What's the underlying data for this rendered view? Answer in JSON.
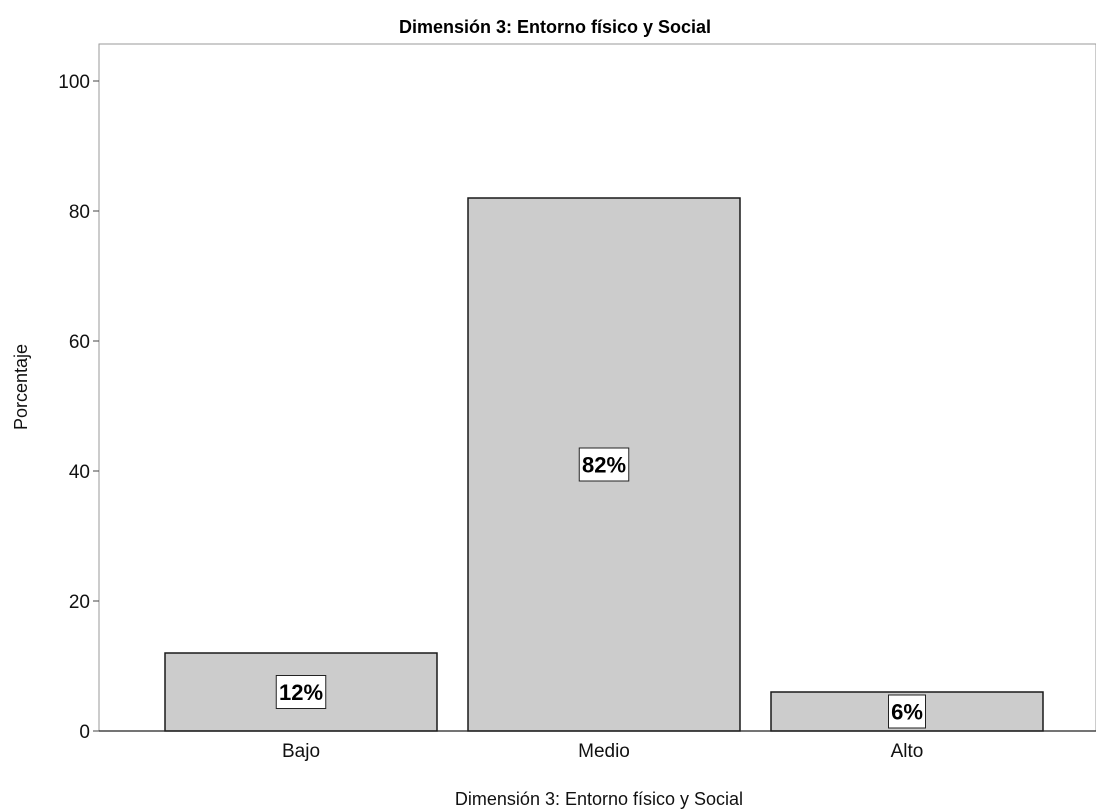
{
  "chart_data": {
    "type": "bar",
    "title": "Dimensión 3: Entorno físico y Social",
    "xlabel": "Dimensión 3: Entorno físico y Social",
    "ylabel": "Porcentaje",
    "categories": [
      "Bajo",
      "Medio",
      "Alto"
    ],
    "values": [
      12,
      82,
      6
    ],
    "data_labels": [
      "12%",
      "82%",
      "6%"
    ],
    "ylim": [
      0,
      100
    ],
    "yticks": [
      0,
      20,
      40,
      60,
      80,
      100
    ],
    "grid": false,
    "colors": {
      "bar_fill": "#cccccc",
      "bar_stroke": "#1a1a1a",
      "label_box": "#ffffff"
    }
  }
}
